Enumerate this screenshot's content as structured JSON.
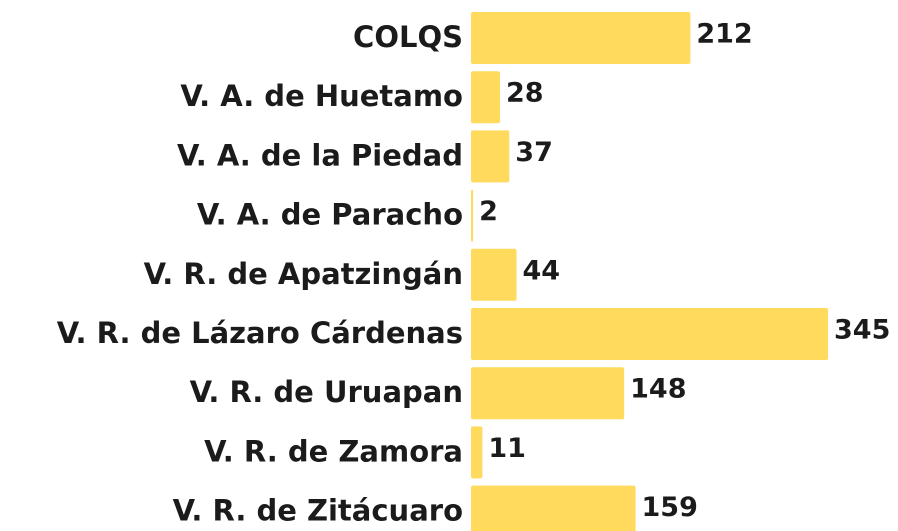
{
  "chart_data": {
    "type": "bar",
    "orientation": "horizontal",
    "categories": [
      "COLQS",
      "V. A. de Huetamo",
      "V. A. de la Piedad",
      "V. A. de Paracho",
      "V. R. de Apatzingán",
      "V. R. de Lázaro Cárdenas",
      "V. R. de Uruapan",
      "V. R. de Zamora",
      "V. R. de Zitácuaro"
    ],
    "values": [
      212,
      28,
      37,
      2,
      44,
      345,
      148,
      11,
      159
    ],
    "color": "#ffda5c"
  }
}
